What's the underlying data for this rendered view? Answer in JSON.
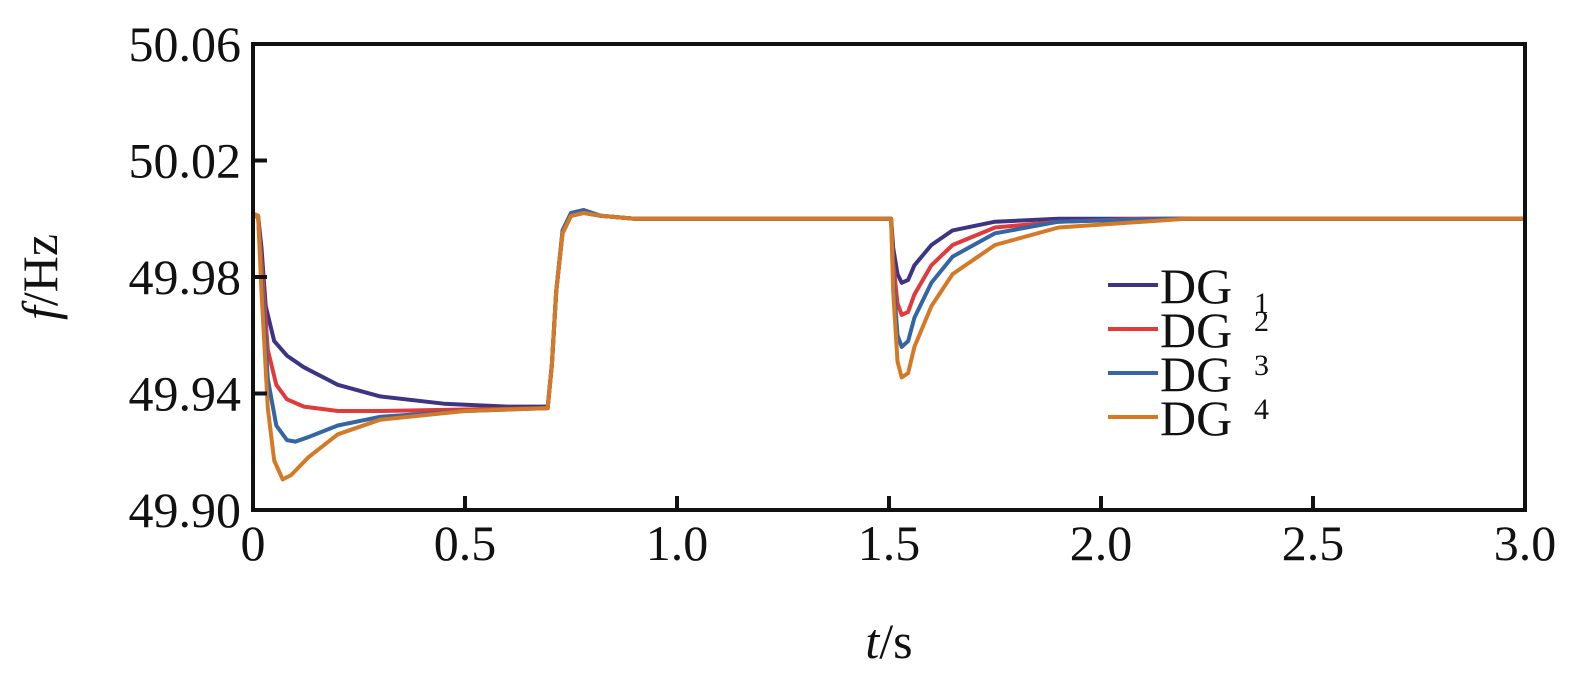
{
  "chart_data": {
    "type": "line",
    "xlabel_var": "t",
    "xlabel_unit": "/s",
    "ylabel_var": "f",
    "ylabel_unit": "/Hz",
    "xlim": [
      0,
      3.0
    ],
    "ylim": [
      49.9,
      50.06
    ],
    "x_ticks": [
      0,
      0.5,
      1.0,
      1.5,
      2.0,
      2.5,
      3.0
    ],
    "x_tick_labels": [
      "0",
      "0.5",
      "1.0",
      "1.5",
      "2.0",
      "2.5",
      "3.0"
    ],
    "y_ticks": [
      49.9,
      49.94,
      49.98,
      50.02,
      50.06
    ],
    "y_tick_labels": [
      "49.90",
      "49.94",
      "49.98",
      "50.02",
      "50.06"
    ],
    "grid": false,
    "legend_position": "right-middle",
    "series": [
      {
        "name": "DG",
        "sub": "1",
        "color": "#3b3584",
        "points": [
          [
            0,
            50.0
          ],
          [
            0.005,
            50.0015
          ],
          [
            0.012,
            50.001
          ],
          [
            0.02,
            49.99
          ],
          [
            0.03,
            49.97
          ],
          [
            0.05,
            49.958
          ],
          [
            0.08,
            49.953
          ],
          [
            0.12,
            49.949
          ],
          [
            0.2,
            49.943
          ],
          [
            0.3,
            49.939
          ],
          [
            0.45,
            49.9365
          ],
          [
            0.6,
            49.9355
          ],
          [
            0.695,
            49.9355
          ],
          [
            0.705,
            49.95
          ],
          [
            0.715,
            49.975
          ],
          [
            0.73,
            49.995
          ],
          [
            0.75,
            50.001
          ],
          [
            0.78,
            50.002
          ],
          [
            0.82,
            50.001
          ],
          [
            0.9,
            50.0
          ],
          [
            1.0,
            50.0
          ],
          [
            1.505,
            50.0
          ],
          [
            1.51,
            49.99
          ],
          [
            1.52,
            49.981
          ],
          [
            1.53,
            49.978
          ],
          [
            1.545,
            49.979
          ],
          [
            1.56,
            49.984
          ],
          [
            1.6,
            49.991
          ],
          [
            1.65,
            49.996
          ],
          [
            1.75,
            49.999
          ],
          [
            1.9,
            50.0
          ],
          [
            2.2,
            50.0
          ],
          [
            3.0,
            50.0
          ]
        ]
      },
      {
        "name": "DG",
        "sub": "2",
        "color": "#e03a3c",
        "points": [
          [
            0,
            50.0
          ],
          [
            0.005,
            50.0015
          ],
          [
            0.012,
            50.001
          ],
          [
            0.02,
            49.985
          ],
          [
            0.035,
            49.955
          ],
          [
            0.055,
            49.943
          ],
          [
            0.08,
            49.938
          ],
          [
            0.12,
            49.9355
          ],
          [
            0.2,
            49.934
          ],
          [
            0.3,
            49.934
          ],
          [
            0.5,
            49.9345
          ],
          [
            0.695,
            49.935
          ],
          [
            0.705,
            49.95
          ],
          [
            0.715,
            49.975
          ],
          [
            0.73,
            49.995
          ],
          [
            0.75,
            50.001
          ],
          [
            0.78,
            50.002
          ],
          [
            0.82,
            50.001
          ],
          [
            0.9,
            50.0
          ],
          [
            1.505,
            50.0
          ],
          [
            1.51,
            49.985
          ],
          [
            1.52,
            49.971
          ],
          [
            1.53,
            49.967
          ],
          [
            1.545,
            49.968
          ],
          [
            1.56,
            49.974
          ],
          [
            1.6,
            49.984
          ],
          [
            1.65,
            49.991
          ],
          [
            1.75,
            49.997
          ],
          [
            1.9,
            49.999
          ],
          [
            2.1,
            50.0
          ],
          [
            3.0,
            50.0
          ]
        ]
      },
      {
        "name": "DG",
        "sub": "3",
        "color": "#3465a4",
        "points": [
          [
            0,
            50.0
          ],
          [
            0.005,
            50.0015
          ],
          [
            0.012,
            50.001
          ],
          [
            0.02,
            49.98
          ],
          [
            0.035,
            49.945
          ],
          [
            0.055,
            49.929
          ],
          [
            0.08,
            49.924
          ],
          [
            0.1,
            49.9235
          ],
          [
            0.13,
            49.925
          ],
          [
            0.2,
            49.929
          ],
          [
            0.3,
            49.932
          ],
          [
            0.5,
            49.934
          ],
          [
            0.695,
            49.935
          ],
          [
            0.705,
            49.95
          ],
          [
            0.715,
            49.975
          ],
          [
            0.73,
            49.996
          ],
          [
            0.75,
            50.002
          ],
          [
            0.78,
            50.003
          ],
          [
            0.82,
            50.001
          ],
          [
            0.9,
            50.0
          ],
          [
            1.505,
            50.0
          ],
          [
            1.51,
            49.98
          ],
          [
            1.52,
            49.96
          ],
          [
            1.53,
            49.956
          ],
          [
            1.545,
            49.958
          ],
          [
            1.56,
            49.966
          ],
          [
            1.6,
            49.978
          ],
          [
            1.65,
            49.987
          ],
          [
            1.75,
            49.995
          ],
          [
            1.9,
            49.999
          ],
          [
            2.15,
            50.0
          ],
          [
            3.0,
            50.0
          ]
        ]
      },
      {
        "name": "DG",
        "sub": "4",
        "color": "#d47a26",
        "points": [
          [
            0,
            50.0
          ],
          [
            0.005,
            50.0015
          ],
          [
            0.012,
            50.001
          ],
          [
            0.02,
            49.975
          ],
          [
            0.035,
            49.935
          ],
          [
            0.05,
            49.917
          ],
          [
            0.07,
            49.9105
          ],
          [
            0.09,
            49.912
          ],
          [
            0.13,
            49.918
          ],
          [
            0.2,
            49.926
          ],
          [
            0.3,
            49.931
          ],
          [
            0.5,
            49.934
          ],
          [
            0.695,
            49.935
          ],
          [
            0.705,
            49.95
          ],
          [
            0.715,
            49.975
          ],
          [
            0.73,
            49.995
          ],
          [
            0.75,
            50.001
          ],
          [
            0.78,
            50.002
          ],
          [
            0.82,
            50.001
          ],
          [
            0.9,
            50.0
          ],
          [
            1.505,
            50.0
          ],
          [
            1.51,
            49.975
          ],
          [
            1.52,
            49.951
          ],
          [
            1.53,
            49.9455
          ],
          [
            1.545,
            49.947
          ],
          [
            1.56,
            49.956
          ],
          [
            1.6,
            49.97
          ],
          [
            1.65,
            49.981
          ],
          [
            1.75,
            49.991
          ],
          [
            1.9,
            49.997
          ],
          [
            2.2,
            50.0
          ],
          [
            3.0,
            50.0
          ]
        ]
      }
    ]
  }
}
